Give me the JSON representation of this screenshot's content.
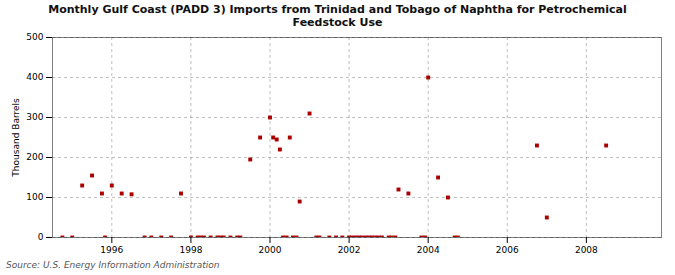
{
  "chart_data": {
    "type": "scatter",
    "title": "Monthly Gulf Coast (PADD 3) Imports from Trinidad and Tobago of Naphtha for Petrochemical\nFeedstock Use",
    "y_label": "Thousand Barrels",
    "annotations": [
      "Source: U.S. Energy Information Administration"
    ],
    "x": [
      1995.25,
      1995.5,
      1995.75,
      1996.0,
      1996.25,
      1996.5,
      1997.75,
      1999.5,
      1999.75,
      2000.0,
      2000.08,
      2000.17,
      2000.25,
      2000.5,
      2000.75,
      2001.0,
      2003.25,
      2003.5,
      2004.0,
      2004.25,
      2004.5,
      2006.75,
      2007.0,
      2008.5,
      1994.75,
      1995.0,
      1995.83,
      1996.83,
      1997.0,
      1997.25,
      1997.5,
      1998.0,
      1998.17,
      1998.25,
      1998.33,
      1998.5,
      1998.67,
      1998.75,
      1998.83,
      1999.0,
      1999.17,
      1999.25,
      2000.33,
      2000.42,
      2000.58,
      2000.67,
      2001.17,
      2001.25,
      2001.5,
      2001.67,
      2001.83,
      2002.0,
      2002.08,
      2002.17,
      2002.25,
      2002.33,
      2002.42,
      2002.5,
      2002.58,
      2002.67,
      2002.75,
      2002.83,
      2003.0,
      2003.08,
      2003.17,
      2003.83,
      2003.92,
      2004.67,
      2004.75
    ],
    "values": [
      130,
      155,
      110,
      130,
      110,
      108,
      110,
      195,
      250,
      300,
      250,
      245,
      220,
      250,
      90,
      310,
      120,
      110,
      400,
      150,
      100,
      230,
      50,
      230,
      0,
      0,
      0,
      0,
      0,
      0,
      0,
      0,
      0,
      0,
      0,
      0,
      0,
      0,
      0,
      0,
      0,
      0,
      0,
      0,
      0,
      0,
      0,
      0,
      0,
      0,
      0,
      0,
      0,
      0,
      0,
      0,
      0,
      0,
      0,
      0,
      0,
      0,
      0,
      0,
      0,
      0,
      0,
      0,
      0
    ],
    "color": "#aa0000",
    "marker": "square",
    "xlim": [
      1994.5,
      2009.9
    ],
    "xticks": [
      1996,
      1998,
      2000,
      2002,
      2004,
      2006,
      2008
    ],
    "ylim": [
      0,
      500
    ],
    "yticks": [
      0,
      100,
      200,
      300,
      400,
      500
    ],
    "grid": true
  }
}
